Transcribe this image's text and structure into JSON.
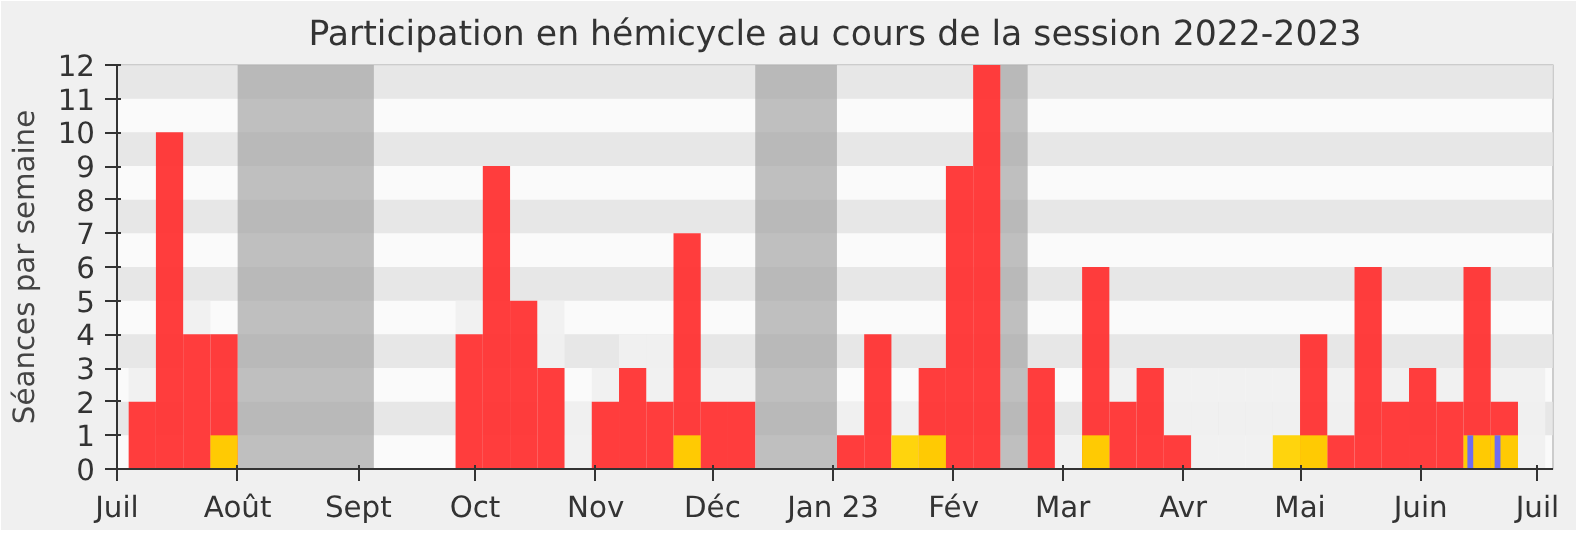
{
  "chart_data": {
    "type": "bar",
    "title": "Participation en hémicycle au cours de la session 2022-2023",
    "ylabel": "Séances par semaine",
    "x": [
      "2022-07-04",
      "2022-07-11",
      "2022-07-18",
      "2022-07-25",
      "2022-08-01",
      "2022-08-08",
      "2022-08-15",
      "2022-08-22",
      "2022-08-29",
      "2022-09-05",
      "2022-09-12",
      "2022-09-19",
      "2022-09-26",
      "2022-10-03",
      "2022-10-10",
      "2022-10-17",
      "2022-10-24",
      "2022-10-31",
      "2022-11-07",
      "2022-11-14",
      "2022-11-21",
      "2022-11-28",
      "2022-12-05",
      "2022-12-12",
      "2022-12-19",
      "2022-12-26",
      "2023-01-02",
      "2023-01-09",
      "2023-01-16",
      "2023-01-23",
      "2023-01-30",
      "2023-02-06",
      "2023-02-13",
      "2023-02-20",
      "2023-02-27",
      "2023-03-06",
      "2023-03-13",
      "2023-03-20",
      "2023-03-27",
      "2023-04-03",
      "2023-04-10",
      "2023-04-17",
      "2023-04-24",
      "2023-05-01",
      "2023-05-08",
      "2023-05-15",
      "2023-05-22",
      "2023-05-29",
      "2023-06-05",
      "2023-06-12",
      "2023-06-19",
      "2023-06-26"
    ],
    "xlim": [
      "2022-07-01",
      "2023-07-05"
    ],
    "xticks": [
      {
        "value": "2022-07-01",
        "label": "Juil"
      },
      {
        "value": "2022-08-01",
        "label": "Août"
      },
      {
        "value": "2022-09-01",
        "label": "Sept"
      },
      {
        "value": "2022-10-01",
        "label": "Oct"
      },
      {
        "value": "2022-11-01",
        "label": "Nov"
      },
      {
        "value": "2022-12-01",
        "label": "Déc"
      },
      {
        "value": "2023-01-01",
        "label": "Jan 23"
      },
      {
        "value": "2023-02-01",
        "label": "Fév"
      },
      {
        "value": "2023-03-01",
        "label": "Mar"
      },
      {
        "value": "2023-04-01",
        "label": "Avr"
      },
      {
        "value": "2023-05-01",
        "label": "Mai"
      },
      {
        "value": "2023-06-01",
        "label": "Juin"
      },
      {
        "value": "2023-07-01",
        "label": "Juil"
      }
    ],
    "ylim": [
      0,
      12
    ],
    "yticks": [
      0,
      1,
      2,
      3,
      4,
      5,
      6,
      7,
      8,
      9,
      10,
      11,
      12
    ],
    "bands": [
      {
        "axis": "x",
        "from": "2022-08-01",
        "to": "2022-09-05",
        "color": "#a0a0a0"
      },
      {
        "axis": "x",
        "from": "2022-12-12",
        "to": "2023-01-02",
        "color": "#a0a0a0"
      },
      {
        "axis": "x",
        "from": "2023-02-13",
        "to": "2023-02-20",
        "color": "#a0a0a0"
      }
    ],
    "series": [
      {
        "color": "#f0f0f0",
        "values": [
          3,
          null,
          5,
          null,
          null,
          null,
          null,
          null,
          null,
          null,
          null,
          null,
          5,
          null,
          null,
          5,
          2,
          3,
          4,
          4,
          null,
          3,
          3,
          null,
          null,
          null,
          2,
          null,
          2,
          null,
          null,
          null,
          null,
          null,
          1,
          null,
          3,
          null,
          3,
          3,
          3,
          3,
          3,
          null,
          3,
          null,
          3,
          null,
          3,
          null,
          3,
          3
        ]
      },
      {
        "color": "#ff3333",
        "values": [
          2,
          10,
          4,
          4,
          null,
          null,
          null,
          null,
          null,
          null,
          null,
          null,
          4,
          9,
          5,
          3,
          null,
          2,
          3,
          2,
          7,
          2,
          2,
          null,
          null,
          null,
          1,
          4,
          null,
          3,
          9,
          12,
          null,
          3,
          null,
          6,
          2,
          3,
          1,
          null,
          null,
          null,
          null,
          4,
          1,
          6,
          2,
          3,
          2,
          6,
          2,
          null
        ]
      },
      {
        "color": "#ffd200",
        "values": [
          null,
          null,
          null,
          1,
          null,
          null,
          null,
          null,
          null,
          null,
          null,
          null,
          null,
          null,
          null,
          null,
          null,
          null,
          null,
          null,
          1,
          null,
          null,
          null,
          null,
          null,
          null,
          null,
          1,
          1,
          null,
          null,
          null,
          null,
          null,
          1,
          null,
          null,
          null,
          null,
          null,
          null,
          1,
          1,
          null,
          null,
          null,
          null,
          null,
          1,
          1,
          null
        ]
      },
      {
        "color": "#6666ff",
        "x": [
          "2023-06-13",
          "2023-06-20"
        ],
        "values": [
          1,
          1
        ]
      }
    ]
  }
}
